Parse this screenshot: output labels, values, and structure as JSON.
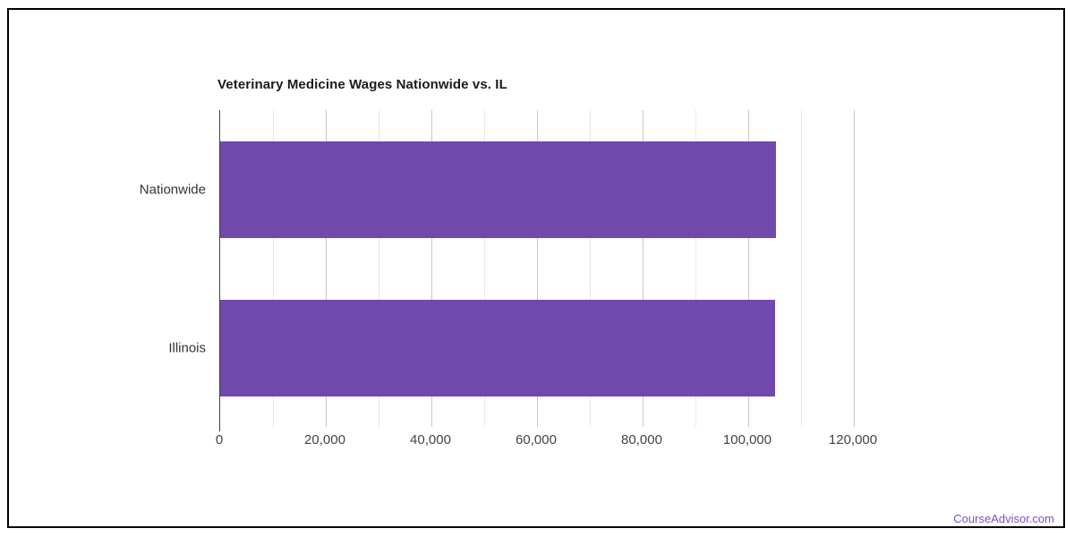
{
  "page": {
    "footer_link": "CourseAdvisor.com",
    "footer_link_color": "#7a4fc9",
    "border_color": "#000000",
    "background_color": "#ffffff"
  },
  "chart_data": {
    "type": "bar",
    "orientation": "horizontal",
    "title": "Veterinary Medicine Wages Nationwide vs. IL",
    "categories": [
      "Nationwide",
      "Illinois"
    ],
    "values": [
      105200,
      105000
    ],
    "xlabel": "",
    "ylabel": "",
    "xlim": [
      0,
      130000
    ],
    "x_major_ticks": [
      0,
      20000,
      40000,
      60000,
      80000,
      100000,
      120000
    ],
    "x_major_tick_labels": [
      "0",
      "20,000",
      "40,000",
      "60,000",
      "80,000",
      "100,000",
      "120,000"
    ],
    "x_minor_ticks": [
      10000,
      30000,
      50000,
      70000,
      90000,
      110000
    ],
    "bar_color": "#7148ac",
    "grid": true,
    "legend": "none",
    "axis_color": "#424242",
    "major_grid_color": "#c7c7c7",
    "minor_grid_color": "#e7e7e7"
  }
}
